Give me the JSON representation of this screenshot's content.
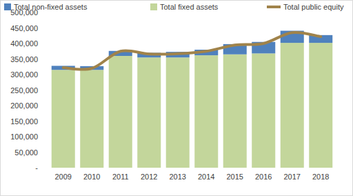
{
  "chart_data": {
    "type": "bar",
    "stacked": true,
    "legend": "top",
    "grid": false,
    "categories": [
      "2009",
      "2010",
      "2011",
      "2012",
      "2013",
      "2014",
      "2015",
      "2016",
      "2017",
      "2018"
    ],
    "series": [
      {
        "name": "Total non-fixed assets",
        "type": "bar",
        "color": "#4F81BD",
        "values": [
          13000,
          12000,
          16000,
          15000,
          18000,
          18000,
          33000,
          37000,
          39000,
          25000
        ]
      },
      {
        "name": "Total fixed assets",
        "type": "bar",
        "color": "#C3D69B",
        "values": [
          315000,
          315000,
          360000,
          355000,
          355000,
          362000,
          365000,
          368000,
          402000,
          402000
        ]
      },
      {
        "name": "Total public equity",
        "type": "line",
        "color": "#A0834A",
        "line_style": "smooth",
        "values": [
          322000,
          320000,
          375000,
          366000,
          367000,
          375000,
          395000,
          400000,
          435000,
          422000
        ]
      }
    ],
    "ylim": [
      0,
      500000
    ],
    "yticks": [
      {
        "value": 0,
        "label": "-"
      },
      {
        "value": 50000,
        "label": "50,000"
      },
      {
        "value": 100000,
        "label": "100,000"
      },
      {
        "value": 150000,
        "label": "150,000"
      },
      {
        "value": 200000,
        "label": "200,000"
      },
      {
        "value": 250000,
        "label": "250,000"
      },
      {
        "value": 300000,
        "label": "300,000"
      },
      {
        "value": 350000,
        "label": "350,000"
      },
      {
        "value": 400000,
        "label": "400,000"
      },
      {
        "value": 450000,
        "label": "450,000"
      },
      {
        "value": 500000,
        "label": "500,000"
      }
    ]
  }
}
